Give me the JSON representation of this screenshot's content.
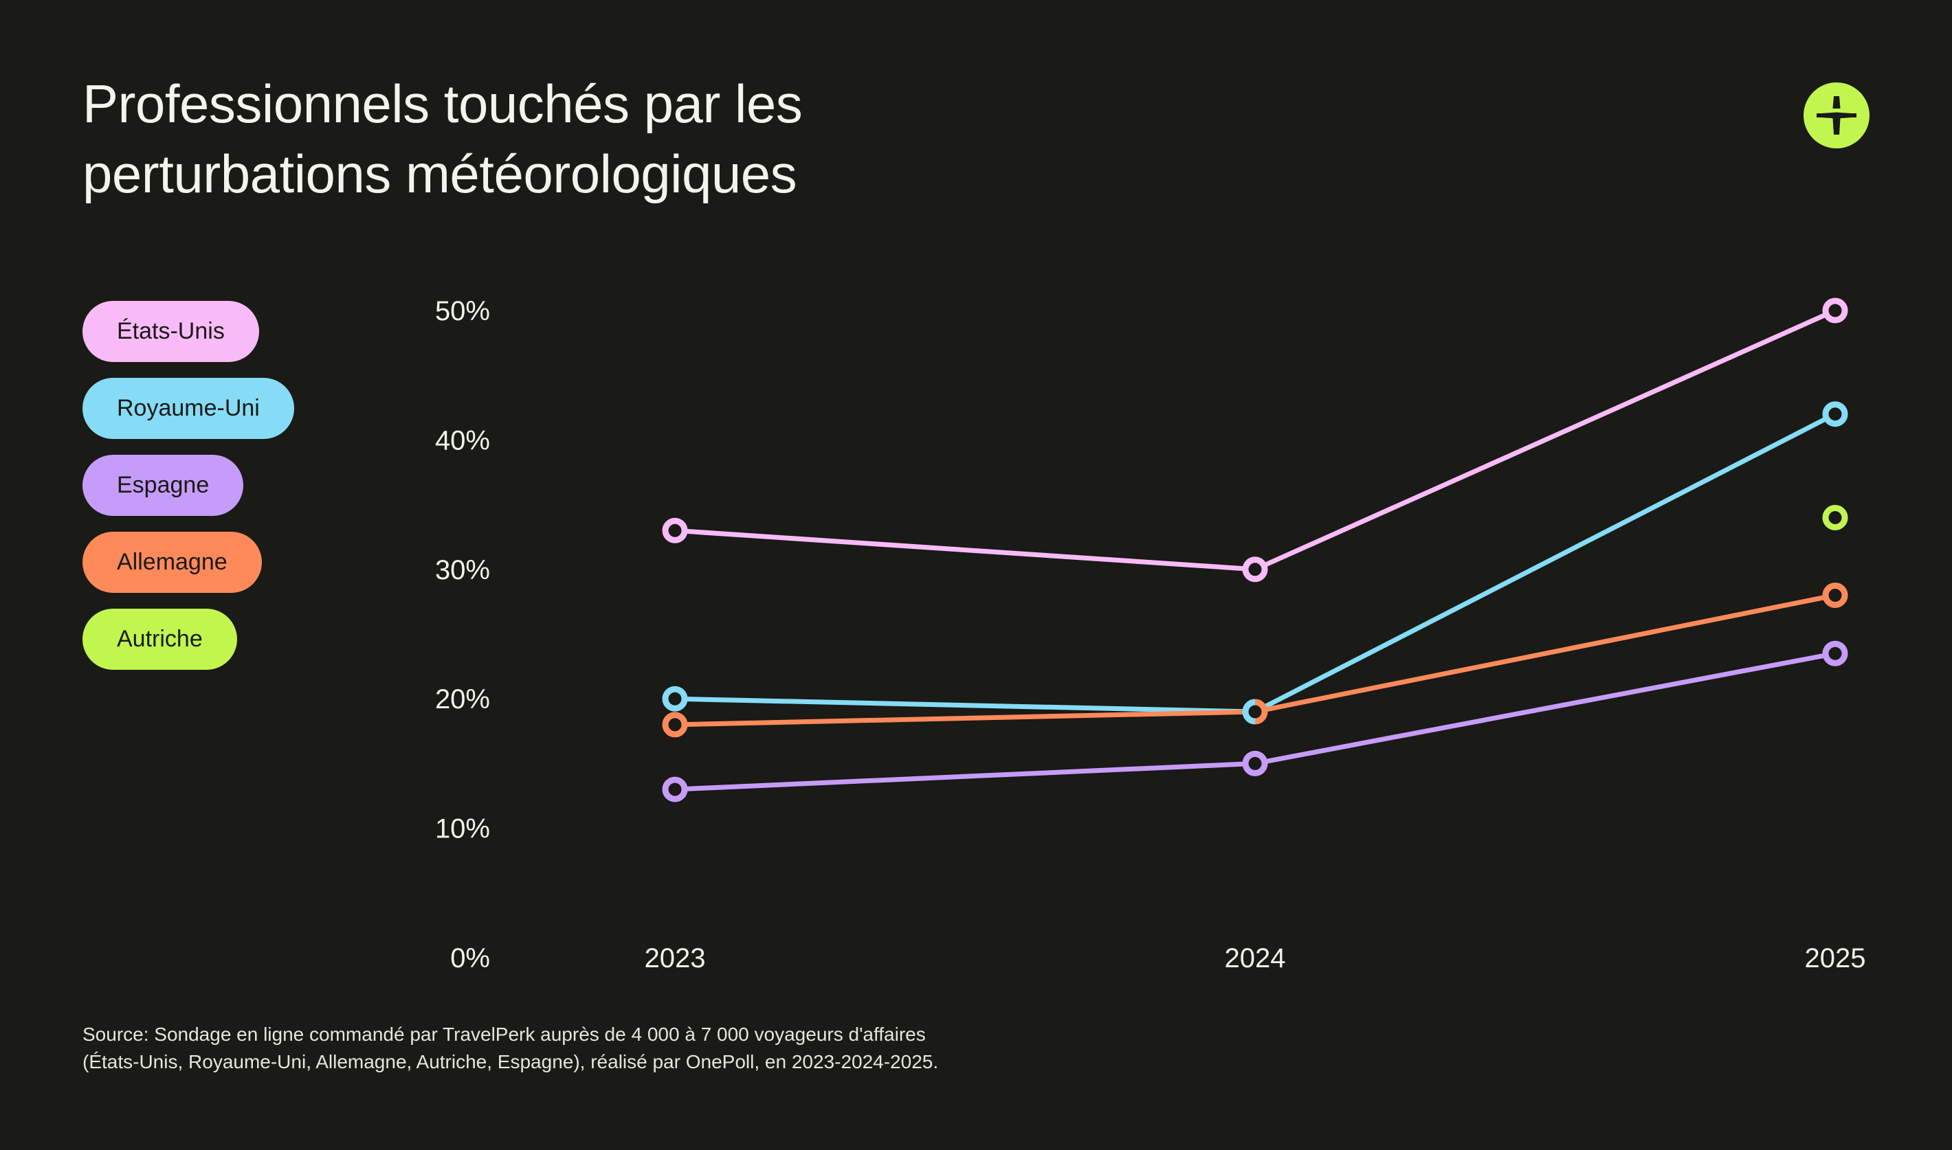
{
  "title": {
    "line1": "Professionnels touchés par les",
    "line2": "perturbations météorologiques"
  },
  "logo": {
    "icon": "travelperk-plus-icon",
    "color": "#c2f64e"
  },
  "legend": [
    {
      "label": "États-Unis",
      "color": "#f8bbf8"
    },
    {
      "label": "Royaume-Uni",
      "color": "#86dcf6"
    },
    {
      "label": "Espagne",
      "color": "#c69cfa"
    },
    {
      "label": "Allemagne",
      "color": "#fe8a5a"
    },
    {
      "label": "Autriche",
      "color": "#c2f64e"
    }
  ],
  "source": {
    "line1": "Source: Sondage en ligne commandé par TravelPerk auprès de 4 000 à 7 000 voyageurs d'affaires",
    "line2": "(États-Unis, Royaume-Uni, Allemagne, Autriche, Espagne), réalisé par OnePoll, en 2023-2024-2025."
  },
  "chart_data": {
    "type": "line",
    "title": "Professionnels touchés par les perturbations météorologiques",
    "xlabel": "",
    "ylabel": "",
    "categories": [
      "2023",
      "2024",
      "2025"
    ],
    "ylim": [
      0,
      50
    ],
    "yticks": [
      "0%",
      "10%",
      "20%",
      "30%",
      "40%",
      "50%"
    ],
    "ytick_values": [
      0,
      10,
      20,
      30,
      40,
      50
    ],
    "grid": false,
    "legend_position": "left",
    "series": [
      {
        "name": "États-Unis",
        "color": "#f8bbf8",
        "values": [
          33,
          30,
          50
        ]
      },
      {
        "name": "Royaume-Uni",
        "color": "#86dcf6",
        "values": [
          20,
          19,
          42
        ]
      },
      {
        "name": "Espagne",
        "color": "#c69cfa",
        "values": [
          13,
          15,
          23.5
        ]
      },
      {
        "name": "Allemagne",
        "color": "#fe8a5a",
        "values": [
          18,
          19,
          28
        ]
      },
      {
        "name": "Autriche",
        "color": "#c2f64e",
        "values": [
          null,
          null,
          34
        ]
      }
    ]
  }
}
